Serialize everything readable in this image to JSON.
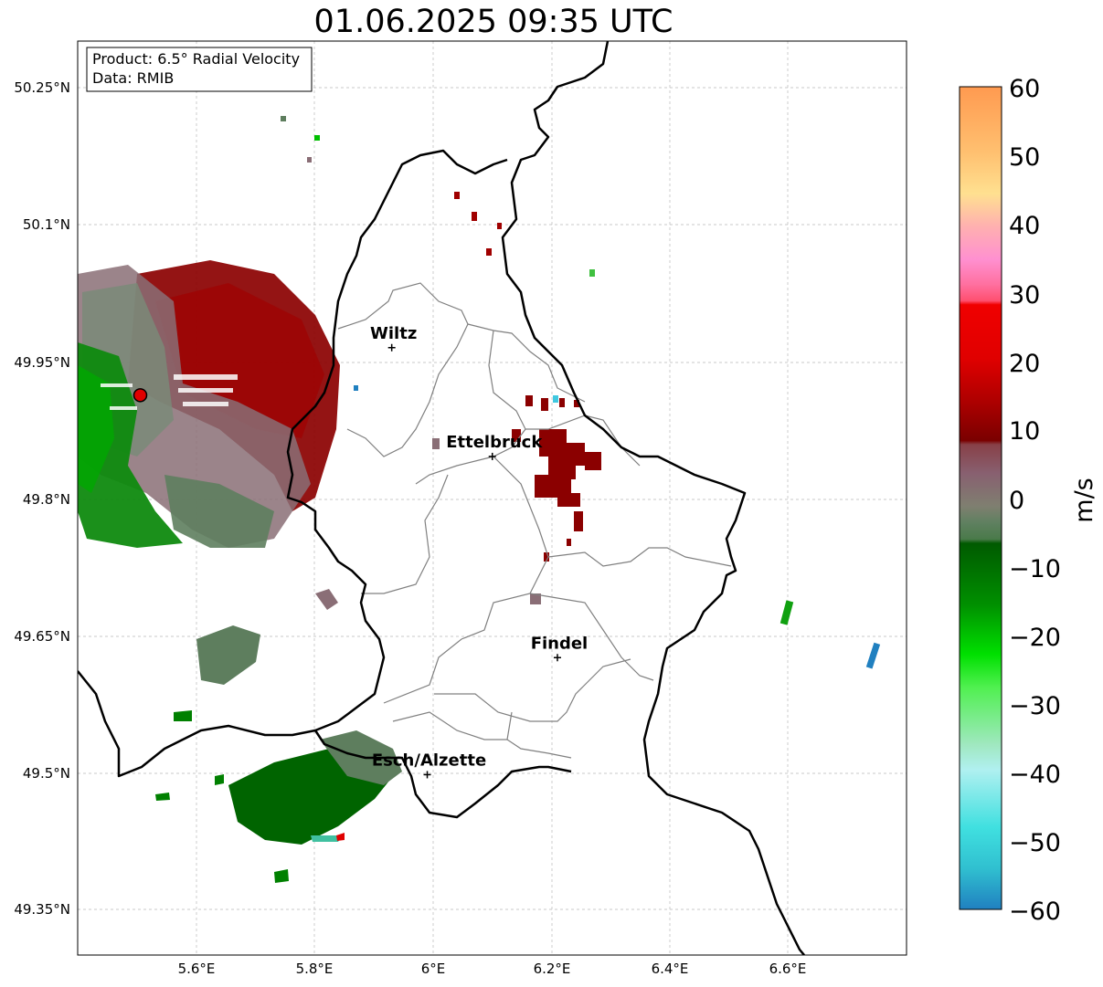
{
  "title": "01.06.2025 09:35 UTC",
  "info_box": {
    "product": "Product: 6.5° Radial Velocity",
    "data": "Data: RMIB"
  },
  "y_ticks": [
    "50.25°N",
    "50.1°N",
    "49.95°N",
    "49.8°N",
    "49.65°N",
    "49.5°N",
    "49.35°N"
  ],
  "x_ticks": [
    "5.6°E",
    "5.8°E",
    "6°E",
    "6.2°E",
    "6.4°E",
    "6.6°E"
  ],
  "cities": [
    {
      "name": "Wiltz",
      "lon": 5.93,
      "lat": 49.966
    },
    {
      "name": "Ettelbruck",
      "lon": 6.1,
      "lat": 49.847
    },
    {
      "name": "Findel",
      "lon": 6.21,
      "lat": 49.627
    },
    {
      "name": "Esch/Alzette",
      "lon": 5.99,
      "lat": 49.499
    }
  ],
  "radar_site": {
    "lon": 5.505,
    "lat": 49.914
  },
  "colorbar": {
    "label": "m/s",
    "ticks": [
      "60",
      "50",
      "40",
      "30",
      "20",
      "10",
      "0",
      "−10",
      "−20",
      "−30",
      "−40",
      "−50",
      "−60"
    ],
    "min": -60,
    "max": 60
  },
  "colors": {
    "border": "#000000",
    "canton_lines": "#808080",
    "receding": "#8b0000",
    "approaching": "#006400",
    "near_zero": "#5f7f5f",
    "radar_site": "#e00000"
  }
}
